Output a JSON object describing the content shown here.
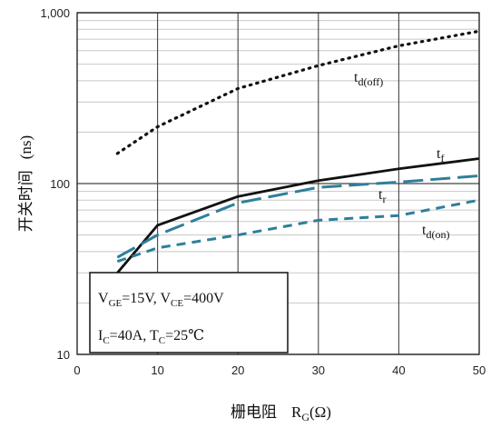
{
  "chart_data": {
    "type": "line",
    "x_axis": {
      "label_main": "栅电阻",
      "label_symbol": "R",
      "label_sub": "G",
      "label_unit": "(Ω)",
      "min": 0,
      "max": 50,
      "ticks": [
        0,
        10,
        20,
        30,
        40,
        50
      ],
      "tick_labels": [
        "0",
        "10",
        "20",
        "30",
        "40",
        "50"
      ]
    },
    "y_axis": {
      "label_main": "开关时间",
      "label_unit": "(ns)",
      "scale": "log",
      "min": 10,
      "max": 1000,
      "ticks": [
        10,
        100,
        1000
      ],
      "tick_labels": [
        "10",
        "100",
        "1,000"
      ],
      "minor_gridlines": true
    },
    "series": [
      {
        "name_main": "t",
        "name_sub": "d(off)",
        "style": "dotted",
        "color": "#111111",
        "x": [
          5,
          10,
          20,
          30,
          40,
          50
        ],
        "y": [
          150,
          215,
          360,
          490,
          640,
          780
        ]
      },
      {
        "name_main": "t",
        "name_sub": "f",
        "style": "solid",
        "color": "#111111",
        "x": [
          5,
          10,
          20,
          30,
          40,
          50
        ],
        "y": [
          30,
          57,
          84,
          104,
          122,
          140
        ]
      },
      {
        "name_main": "t",
        "name_sub": "r",
        "style": "long-dash",
        "color": "#2e7f9b",
        "x": [
          5,
          10,
          20,
          30,
          40,
          50
        ],
        "y": [
          37,
          50,
          77,
          95,
          102,
          111
        ]
      },
      {
        "name_main": "t",
        "name_sub": "d(on)",
        "style": "short-dash",
        "color": "#2e7f9b",
        "x": [
          5,
          10,
          20,
          30,
          40,
          50
        ],
        "y": [
          35,
          42,
          50,
          61,
          65,
          80
        ]
      }
    ],
    "annotation": {
      "line1": {
        "p1_main": "V",
        "p1_sub": "GE",
        "p1_rest": "=15V, ",
        "p2_main": "V",
        "p2_sub": "CE",
        "p2_rest": "=400V"
      },
      "line2": {
        "p1_main": "I",
        "p1_sub": "C",
        "p1_rest": "=40A, ",
        "p2_main": "T",
        "p2_sub": "C",
        "p2_rest": "=25℃"
      }
    }
  }
}
